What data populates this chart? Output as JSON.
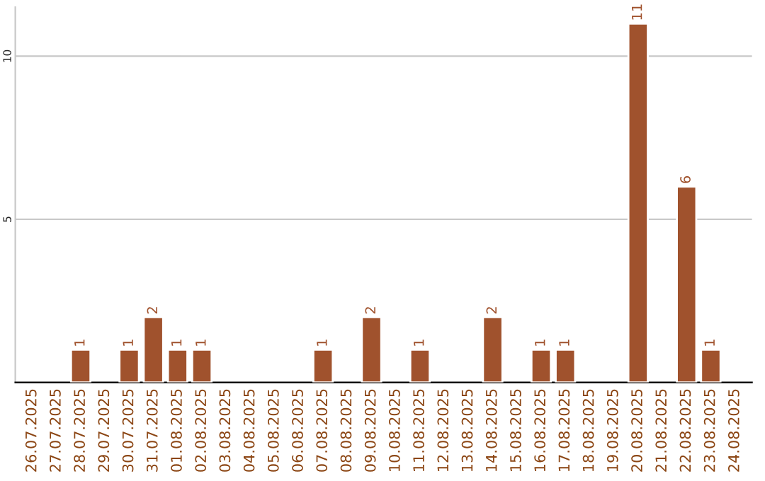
{
  "chart_data": {
    "type": "bar",
    "categories": [
      "26.07.2025",
      "27.07.2025",
      "28.07.2025",
      "29.07.2025",
      "30.07.2025",
      "31.07.2025",
      "01.08.2025",
      "02.08.2025",
      "03.08.2025",
      "04.08.2025",
      "05.08.2025",
      "06.08.2025",
      "07.08.2025",
      "08.08.2025",
      "09.08.2025",
      "10.08.2025",
      "11.08.2025",
      "12.08.2025",
      "13.08.2025",
      "14.08.2025",
      "15.08.2025",
      "16.08.2025",
      "17.08.2025",
      "18.08.2025",
      "19.08.2025",
      "20.08.2025",
      "21.08.2025",
      "22.08.2025",
      "23.08.2025",
      "24.08.2025"
    ],
    "values": [
      null,
      null,
      1,
      null,
      1,
      2,
      1,
      1,
      null,
      null,
      null,
      null,
      1,
      null,
      2,
      null,
      1,
      null,
      null,
      2,
      null,
      1,
      1,
      null,
      null,
      11,
      null,
      6,
      1,
      null
    ],
    "value_labels": [
      null,
      null,
      "1",
      null,
      "1",
      "2",
      "1",
      "1",
      null,
      null,
      null,
      null,
      "1",
      null,
      "2",
      null,
      "1",
      null,
      null,
      "2",
      null,
      "1",
      "1",
      null,
      null,
      "11",
      null,
      "6",
      "1",
      null
    ],
    "color": "#a0522d",
    "ylim": [
      0,
      11.5
    ],
    "yticks": [
      5,
      10
    ],
    "grid": "y",
    "legend": false
  }
}
